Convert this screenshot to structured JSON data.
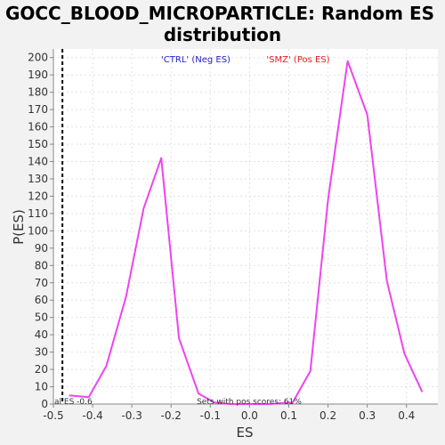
{
  "chart_data": {
    "type": "line",
    "title_line1": "GOCC_BLOOD_MICROPARTICLE: Random ES",
    "title_line2": "distribution",
    "xlabel": "ES",
    "ylabel": "P(ES)",
    "xlim": [
      -0.5,
      0.48
    ],
    "ylim": [
      0,
      205
    ],
    "xticks": [
      -0.5,
      -0.4,
      -0.3,
      -0.2,
      -0.1,
      0.0,
      0.1,
      0.2,
      0.3,
      0.4
    ],
    "xtick_labels": [
      "-0.5",
      "-0.4",
      "-0.3",
      "-0.2",
      "-0.1",
      "0.0",
      "0.1",
      "0.2",
      "0.3",
      "0.4"
    ],
    "yticks": [
      0,
      10,
      20,
      30,
      40,
      50,
      60,
      70,
      80,
      90,
      100,
      110,
      120,
      130,
      140,
      150,
      160,
      170,
      180,
      190,
      200
    ],
    "grid": true,
    "series": [
      {
        "color": "#ee44ee",
        "x": [
          -0.46,
          -0.41,
          -0.365,
          -0.315,
          -0.27,
          -0.225,
          -0.18,
          -0.13,
          -0.09,
          -0.05,
          0.0,
          0.05,
          0.11,
          0.155,
          0.2,
          0.25,
          0.3,
          0.35,
          0.395,
          0.44
        ],
        "y": [
          5,
          4,
          22,
          62,
          113,
          142,
          38,
          6,
          1,
          0,
          0,
          0,
          1,
          19,
          118,
          198,
          167,
          71,
          29,
          7
        ]
      }
    ],
    "vline": {
      "x": -0.477,
      "style": "dashed",
      "color": "#000000"
    },
    "legend": [
      {
        "text": "'CTRL' (Neg ES)",
        "color": "#2222cc"
      },
      {
        "text": "'SMZ' (Pos ES)",
        "color": "#dd2222"
      }
    ],
    "annotations": [
      {
        "text": "al ES -0.6"
      },
      {
        "text": "Sets with pos scores: 61%"
      }
    ]
  }
}
